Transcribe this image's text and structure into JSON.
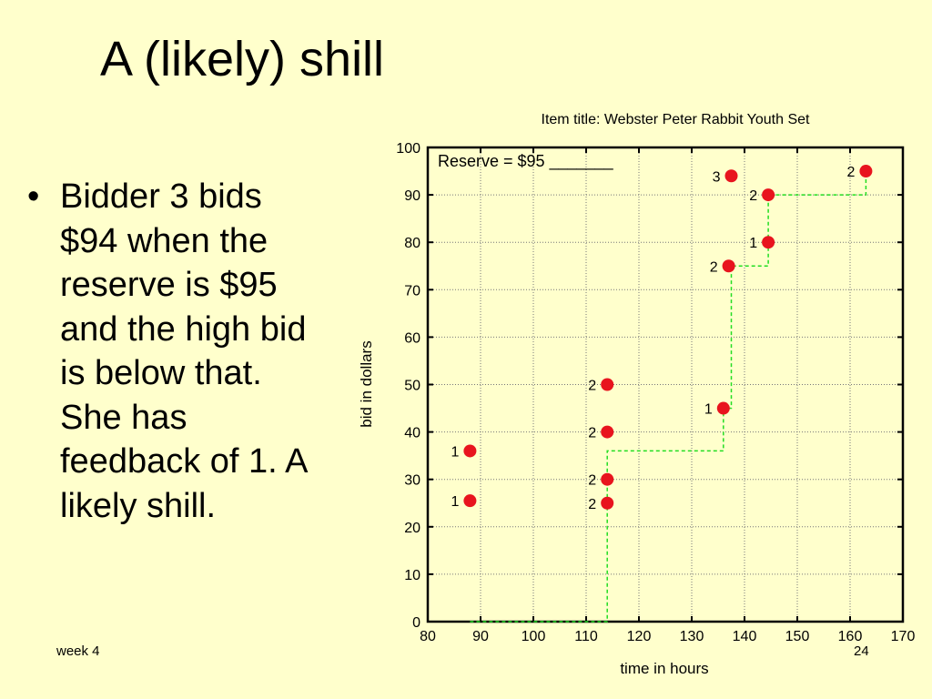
{
  "slide": {
    "title": "A (likely) shill",
    "bullet": "Bidder 3 bids $94 when the reserve is $95 and the high bid is below that. She has feedback of 1. A likely shill.",
    "footer_left": "week 4",
    "page_number": "24"
  },
  "colors": {
    "background": "#ffffcc",
    "bid_marker": "#e8141e",
    "price_line": "#22dd22",
    "grid": "#777777"
  },
  "chart_data": {
    "type": "scatter",
    "title": "Item title:  Webster Peter Rabbit Youth Set",
    "xlabel": "time in hours",
    "ylabel": "bid in dollars",
    "xlim": [
      80,
      170
    ],
    "ylim": [
      0,
      100
    ],
    "xticks": [
      80,
      90,
      100,
      110,
      120,
      130,
      140,
      150,
      160,
      170
    ],
    "yticks": [
      0,
      10,
      20,
      30,
      40,
      50,
      60,
      70,
      80,
      90,
      100
    ],
    "grid": true,
    "annotation": "Reserve = $95 _______",
    "bids": [
      {
        "x": 88,
        "y": 36,
        "bidder": "1"
      },
      {
        "x": 88,
        "y": 25.5,
        "bidder": "1"
      },
      {
        "x": 114,
        "y": 50,
        "bidder": "2"
      },
      {
        "x": 114,
        "y": 40,
        "bidder": "2"
      },
      {
        "x": 114,
        "y": 30,
        "bidder": "2"
      },
      {
        "x": 114,
        "y": 25,
        "bidder": "2"
      },
      {
        "x": 136,
        "y": 45,
        "bidder": "1"
      },
      {
        "x": 137,
        "y": 75,
        "bidder": "2"
      },
      {
        "x": 137.5,
        "y": 94,
        "bidder": "3"
      },
      {
        "x": 144.5,
        "y": 90,
        "bidder": "2"
      },
      {
        "x": 144.5,
        "y": 80,
        "bidder": "1"
      },
      {
        "x": 163,
        "y": 95,
        "bidder": "2"
      }
    ],
    "price_path": {
      "x": [
        88,
        114,
        114,
        136,
        136,
        137.5,
        137.5,
        144.5,
        144.5,
        163,
        163
      ],
      "y": [
        0,
        0,
        36,
        36,
        45,
        45,
        75,
        75,
        90,
        90,
        95
      ]
    }
  }
}
